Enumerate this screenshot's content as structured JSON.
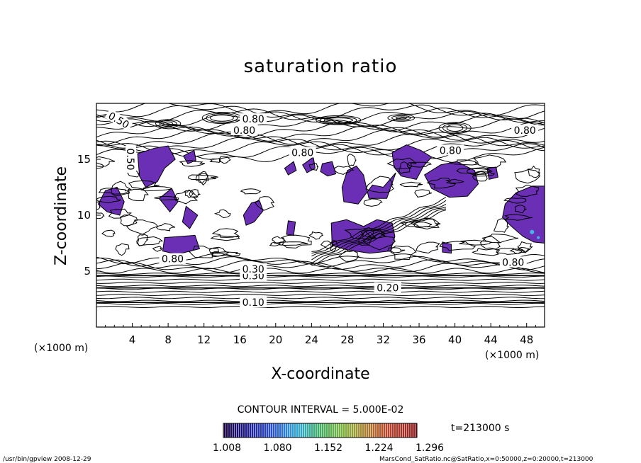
{
  "chart_data": {
    "type": "heatmap",
    "title": "saturation ratio",
    "xlabel": "X-coordinate",
    "ylabel": "Z-coordinate",
    "x_unit": "(×1000 m)",
    "y_unit": "(×1000 m)",
    "xlim": [
      0,
      50
    ],
    "ylim": [
      0,
      20
    ],
    "x_ticks": [
      4,
      8,
      12,
      16,
      20,
      24,
      28,
      32,
      36,
      40,
      44,
      48
    ],
    "y_ticks": [
      5,
      10,
      15
    ],
    "contour_interval": "CONTOUR INTERVAL = 5.000E-02",
    "time_label": "t=213000 s",
    "contour_labels": [
      "0.10",
      "0.20",
      "0.30",
      "0.50",
      "0.80"
    ],
    "contours": [
      {
        "label": "0.10",
        "z": 2.2,
        "lx": 17.5
      },
      {
        "label": "0.20",
        "z": 3.5,
        "lx": 32.5
      },
      {
        "label": "0.30",
        "z": 4.6,
        "lx": 17.5
      }
    ],
    "colorbar": {
      "ticks": [
        "1.008",
        "1.080",
        "1.152",
        "1.224",
        "1.296"
      ],
      "min": 1.008,
      "max": 1.296,
      "shaded_color": "#6a2fb5"
    },
    "supersaturated_regions": [
      [
        [
          1,
          12.2
        ],
        [
          2.3,
          12.5
        ],
        [
          3.1,
          11.2
        ],
        [
          2.6,
          10.0
        ],
        [
          1.2,
          10.3
        ],
        [
          0.2,
          11.0
        ]
      ],
      [
        [
          4.6,
          15.5
        ],
        [
          6.5,
          16.0
        ],
        [
          8.0,
          16.2
        ],
        [
          8.8,
          15.0
        ],
        [
          7.6,
          14.2
        ],
        [
          6.8,
          13.0
        ],
        [
          5.5,
          12.5
        ],
        [
          4.8,
          13.5
        ]
      ],
      [
        [
          7.0,
          11.5
        ],
        [
          8.4,
          12.4
        ],
        [
          9.1,
          11.2
        ],
        [
          8.2,
          10.3
        ]
      ],
      [
        [
          9.7,
          15.3
        ],
        [
          10.9,
          15.8
        ],
        [
          11.1,
          14.9
        ],
        [
          10.2,
          14.6
        ]
      ],
      [
        [
          7.6,
          8.0
        ],
        [
          11.0,
          8.2
        ],
        [
          11.5,
          7.0
        ],
        [
          9.0,
          6.5
        ],
        [
          7.4,
          6.8
        ]
      ],
      [
        [
          10.0,
          10.8
        ],
        [
          11.3,
          10.0
        ],
        [
          10.4,
          8.8
        ],
        [
          9.6,
          9.4
        ]
      ],
      [
        [
          16.4,
          10.0
        ],
        [
          17.3,
          11.1
        ],
        [
          18.2,
          11.3
        ],
        [
          18.6,
          10.4
        ],
        [
          17.6,
          9.4
        ],
        [
          16.7,
          9.1
        ]
      ],
      [
        [
          21.0,
          14.2
        ],
        [
          22.0,
          14.8
        ],
        [
          22.3,
          14.0
        ],
        [
          21.4,
          13.6
        ]
      ],
      [
        [
          23.0,
          14.5
        ],
        [
          24.2,
          15.2
        ],
        [
          24.4,
          14.2
        ],
        [
          23.5,
          13.8
        ]
      ],
      [
        [
          25.2,
          14.6
        ],
        [
          26.3,
          14.8
        ],
        [
          26.7,
          13.7
        ],
        [
          25.8,
          13.5
        ],
        [
          25.0,
          13.9
        ]
      ],
      [
        [
          28.0,
          14.0
        ],
        [
          29.0,
          14.4
        ],
        [
          29.8,
          13.6
        ],
        [
          30.4,
          11.5
        ],
        [
          32.4,
          11.5
        ],
        [
          33.4,
          13.8
        ],
        [
          32.0,
          12.5
        ],
        [
          30.8,
          12.7
        ],
        [
          29.2,
          11.0
        ],
        [
          27.6,
          11.2
        ],
        [
          27.4,
          12.5
        ]
      ],
      [
        [
          21.4,
          9.5
        ],
        [
          22.2,
          9.4
        ],
        [
          22.0,
          8.2
        ],
        [
          21.2,
          8.3
        ]
      ],
      [
        [
          26.2,
          9.3
        ],
        [
          27.9,
          9.6
        ],
        [
          29.8,
          9.0
        ],
        [
          31.3,
          9.6
        ],
        [
          33.0,
          9.3
        ],
        [
          33.3,
          8.1
        ],
        [
          32.8,
          6.8
        ],
        [
          30.5,
          6.6
        ],
        [
          28.0,
          6.9
        ],
        [
          26.3,
          7.3
        ]
      ],
      [
        [
          33.0,
          15.6
        ],
        [
          34.6,
          16.3
        ],
        [
          36.2,
          15.8
        ],
        [
          37.4,
          15.2
        ],
        [
          36.5,
          14.4
        ],
        [
          35.7,
          13.2
        ],
        [
          34.0,
          13.5
        ],
        [
          33.2,
          14.3
        ]
      ],
      [
        [
          36.6,
          13.6
        ],
        [
          38.4,
          14.5
        ],
        [
          40.2,
          14.8
        ],
        [
          42.2,
          14.0
        ],
        [
          42.6,
          12.8
        ],
        [
          41.4,
          11.7
        ],
        [
          39.4,
          11.6
        ],
        [
          37.4,
          12.4
        ]
      ],
      [
        [
          43.6,
          14.2
        ],
        [
          44.6,
          14.3
        ],
        [
          44.8,
          13.4
        ],
        [
          43.8,
          13.2
        ]
      ],
      [
        [
          38.6,
          7.6
        ],
        [
          39.6,
          7.4
        ],
        [
          39.6,
          6.6
        ],
        [
          38.6,
          6.7
        ]
      ],
      [
        [
          45.6,
          11.0
        ],
        [
          46.8,
          12.0
        ],
        [
          48.6,
          12.6
        ],
        [
          50.0,
          12.6
        ],
        [
          50.0,
          7.5
        ],
        [
          48.8,
          7.6
        ],
        [
          47.6,
          8.1
        ],
        [
          46.3,
          9.0
        ],
        [
          45.3,
          9.8
        ]
      ]
    ]
  },
  "footer": {
    "left": "/usr/bin/gpview   2008-12-29",
    "right": "MarsCond_SatRatio.nc@SatRatio,x=0:50000,z=0:20000,t=213000"
  }
}
